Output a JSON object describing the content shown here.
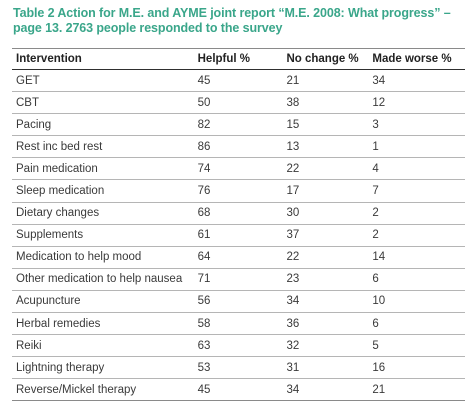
{
  "caption": {
    "line1": "Table 2 Action for M.E. and AYME joint report “M.E. 2008: What progress” –",
    "line2": "page 13. 2763 people responded to the survey"
  },
  "table": {
    "headers": [
      "Intervention",
      "Helpful %",
      "No change %",
      "Made worse %"
    ],
    "rows": [
      [
        "GET",
        "45",
        "21",
        "34"
      ],
      [
        "CBT",
        "50",
        "38",
        "12"
      ],
      [
        "Pacing",
        "82",
        "15",
        "3"
      ],
      [
        "Rest inc bed rest",
        "86",
        "13",
        "1"
      ],
      [
        "Pain medication",
        "74",
        "22",
        "4"
      ],
      [
        "Sleep medication",
        "76",
        "17",
        "7"
      ],
      [
        "Dietary changes",
        "68",
        "30",
        "2"
      ],
      [
        "Supplements",
        "61",
        "37",
        "2"
      ],
      [
        "Medication to help mood",
        "64",
        "22",
        "14"
      ],
      [
        "Other medication to help nausea",
        "71",
        "23",
        "6"
      ],
      [
        "Acupuncture",
        "56",
        "34",
        "10"
      ],
      [
        "Herbal remedies",
        "58",
        "36",
        "6"
      ],
      [
        "Reiki",
        "63",
        "32",
        "5"
      ],
      [
        "Lightning therapy",
        "53",
        "31",
        "16"
      ],
      [
        "Reverse/Mickel therapy",
        "45",
        "34",
        "21"
      ]
    ]
  },
  "colors": {
    "caption": "#3aa68a",
    "text": "#3a3a3a",
    "rule": "#b5b5b5"
  }
}
